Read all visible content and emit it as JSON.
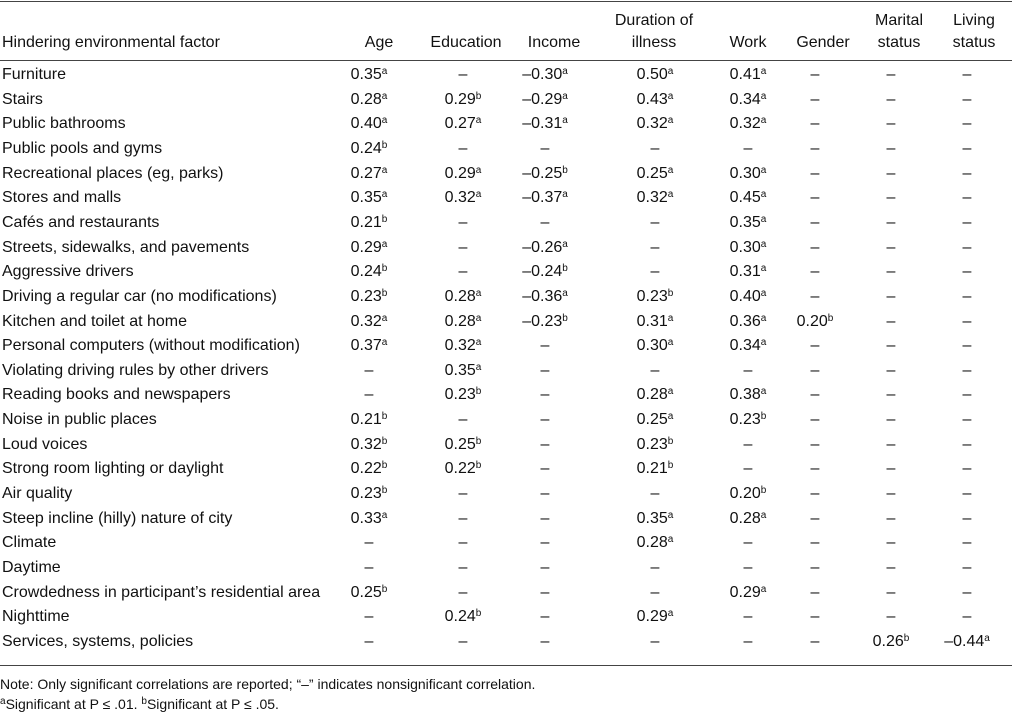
{
  "table": {
    "headers": [
      "Hindering environmental factor",
      "Age",
      "Education",
      "Income",
      "Duration of illness",
      "Work",
      "Gender",
      "Marital status",
      "Living status"
    ],
    "rows": [
      {
        "label": "Furniture",
        "cells": [
          {
            "text": "0.35",
            "sup": "a"
          },
          "–",
          {
            "text": "–0.30",
            "sup": "a"
          },
          {
            "text": "0.50",
            "sup": "a"
          },
          {
            "text": "0.41",
            "sup": "a"
          },
          "–",
          "–",
          "–"
        ]
      },
      {
        "label": "Stairs",
        "cells": [
          {
            "text": "0.28",
            "sup": "a"
          },
          {
            "text": "0.29",
            "sup": "b"
          },
          {
            "text": "–0.29",
            "sup": "a"
          },
          {
            "text": "0.43",
            "sup": "a"
          },
          {
            "text": "0.34",
            "sup": "a"
          },
          "–",
          "–",
          "–"
        ]
      },
      {
        "label": "Public bathrooms",
        "cells": [
          {
            "text": "0.40",
            "sup": "a"
          },
          {
            "text": "0.27",
            "sup": "a"
          },
          {
            "text": "–0.31",
            "sup": "a"
          },
          {
            "text": "0.32",
            "sup": "a"
          },
          {
            "text": "0.32",
            "sup": "a"
          },
          "–",
          "–",
          "–"
        ]
      },
      {
        "label": "Public pools and gyms",
        "cells": [
          {
            "text": "0.24",
            "sup": "b"
          },
          "–",
          "–",
          "–",
          "–",
          "–",
          "–",
          "–"
        ]
      },
      {
        "label": "Recreational places (eg, parks)",
        "cells": [
          {
            "text": "0.27",
            "sup": "a"
          },
          {
            "text": "0.29",
            "sup": "a"
          },
          {
            "text": "–0.25",
            "sup": "b"
          },
          {
            "text": "0.25",
            "sup": "a"
          },
          {
            "text": "0.30",
            "sup": "a"
          },
          "–",
          "–",
          "–"
        ]
      },
      {
        "label": "Stores and malls",
        "cells": [
          {
            "text": "0.35",
            "sup": "a"
          },
          {
            "text": "0.32",
            "sup": "a"
          },
          {
            "text": "–0.37",
            "sup": "a"
          },
          {
            "text": "0.32",
            "sup": "a"
          },
          {
            "text": "0.45",
            "sup": "a"
          },
          "–",
          "–",
          "–"
        ]
      },
      {
        "label": "Cafés and restaurants",
        "cells": [
          {
            "text": "0.21",
            "sup": "b"
          },
          "–",
          "–",
          "–",
          {
            "text": "0.35",
            "sup": "a"
          },
          "–",
          "–",
          "–"
        ]
      },
      {
        "label": "Streets, sidewalks, and pavements",
        "cells": [
          {
            "text": "0.29",
            "sup": "a"
          },
          "–",
          {
            "text": "–0.26",
            "sup": "a"
          },
          "–",
          {
            "text": "0.30",
            "sup": "a"
          },
          "–",
          "–",
          "–"
        ]
      },
      {
        "label": "Aggressive drivers",
        "cells": [
          {
            "text": "0.24",
            "sup": "b"
          },
          "–",
          {
            "text": "–0.24",
            "sup": "b"
          },
          "–",
          {
            "text": "0.31",
            "sup": "a"
          },
          "–",
          "–",
          "–"
        ]
      },
      {
        "label": "Driving a regular car (no modifications)",
        "cells": [
          {
            "text": "0.23",
            "sup": "b"
          },
          {
            "text": "0.28",
            "sup": "a"
          },
          {
            "text": "–0.36",
            "sup": "a"
          },
          {
            "text": "0.23",
            "sup": "b"
          },
          {
            "text": "0.40",
            "sup": "a"
          },
          "–",
          "–",
          "–"
        ]
      },
      {
        "label": "Kitchen and toilet at home",
        "cells": [
          {
            "text": "0.32",
            "sup": "a"
          },
          {
            "text": "0.28",
            "sup": "a"
          },
          {
            "text": "–0.23",
            "sup": "b"
          },
          {
            "text": "0.31",
            "sup": "a"
          },
          {
            "text": "0.36",
            "sup": "a"
          },
          {
            "text": "0.20",
            "sup": "b"
          },
          "–",
          "–"
        ]
      },
      {
        "label": "Personal computers (without modification)",
        "cells": [
          {
            "text": "0.37",
            "sup": "a"
          },
          {
            "text": "0.32",
            "sup": "a"
          },
          "–",
          {
            "text": "0.30",
            "sup": "a"
          },
          {
            "text": "0.34",
            "sup": "a"
          },
          "–",
          "–",
          "–"
        ]
      },
      {
        "label": "Violating driving rules by other drivers",
        "cells": [
          "–",
          {
            "text": "0.35",
            "sup": "a"
          },
          "–",
          "–",
          "–",
          "–",
          "–",
          "–"
        ]
      },
      {
        "label": "Reading books and newspapers",
        "cells": [
          "–",
          {
            "text": "0.23",
            "sup": "b"
          },
          "–",
          {
            "text": "0.28",
            "sup": "a"
          },
          {
            "text": "0.38",
            "sup": "a"
          },
          "–",
          "–",
          "–"
        ]
      },
      {
        "label": "Noise in public places",
        "cells": [
          {
            "text": "0.21",
            "sup": "b"
          },
          "–",
          "–",
          {
            "text": "0.25",
            "sup": "a"
          },
          {
            "text": "0.23",
            "sup": "b"
          },
          "–",
          "–",
          "–"
        ]
      },
      {
        "label": "Loud voices",
        "cells": [
          {
            "text": "0.32",
            "sup": "b"
          },
          {
            "text": "0.25",
            "sup": "b"
          },
          "–",
          {
            "text": "0.23",
            "sup": "b"
          },
          "–",
          "–",
          "–",
          "–"
        ]
      },
      {
        "label": "Strong room lighting or daylight",
        "cells": [
          {
            "text": "0.22",
            "sup": "b"
          },
          {
            "text": "0.22",
            "sup": "b"
          },
          "–",
          {
            "text": "0.21",
            "sup": "b"
          },
          "–",
          "–",
          "–",
          "–"
        ]
      },
      {
        "label": "Air quality",
        "cells": [
          {
            "text": "0.23",
            "sup": "b"
          },
          "–",
          "–",
          "–",
          {
            "text": "0.20",
            "sup": "b"
          },
          "–",
          "–",
          "–"
        ]
      },
      {
        "label": "Steep incline (hilly) nature of city",
        "cells": [
          {
            "text": "0.33",
            "sup": "a"
          },
          "–",
          "–",
          {
            "text": "0.35",
            "sup": "a"
          },
          {
            "text": "0.28",
            "sup": "a"
          },
          "–",
          "–",
          "–"
        ]
      },
      {
        "label": "Climate",
        "cells": [
          "–",
          "–",
          "–",
          {
            "text": "0.28",
            "sup": "a"
          },
          "–",
          "–",
          "–",
          "–"
        ]
      },
      {
        "label": "Daytime",
        "cells": [
          "–",
          "–",
          "–",
          "–",
          "–",
          "–",
          "–",
          "–"
        ]
      },
      {
        "label": "Crowdedness in participant’s residential area",
        "cells": [
          {
            "text": "0.25",
            "sup": "b"
          },
          "–",
          "–",
          "–",
          {
            "text": "0.29",
            "sup": "a"
          },
          "–",
          "–",
          "–"
        ]
      },
      {
        "label": "Nighttime",
        "cells": [
          "–",
          {
            "text": "0.24",
            "sup": "b"
          },
          "–",
          {
            "text": "0.29",
            "sup": "a"
          },
          "–",
          "–",
          "–",
          "–"
        ]
      },
      {
        "label": "Services, systems, policies",
        "cells": [
          "–",
          "–",
          "–",
          "–",
          "–",
          "–",
          {
            "text": "0.26",
            "sup": "b"
          },
          {
            "text": "–0.44",
            "sup": "a"
          }
        ]
      }
    ]
  },
  "notes": {
    "note": "Note: Only significant correlations are reported; “–” indicates nonsignificant correlation.",
    "footnotes": [
      {
        "mark": "a",
        "text": "Significant at P ≤ .01. "
      },
      {
        "mark": "b",
        "text": "Significant at P ≤ .05."
      }
    ]
  }
}
